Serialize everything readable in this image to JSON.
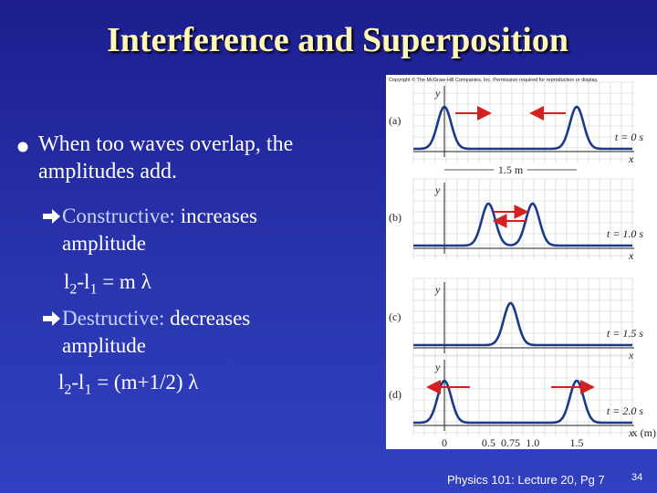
{
  "title": "Interference and Superposition",
  "bullet": "When too waves overlap, the amplitudes add.",
  "sub_items": [
    {
      "term": "Constructive:",
      "text": "increases amplitude",
      "formula": [
        "l",
        "2",
        "-l",
        "1",
        "= m λ"
      ]
    },
    {
      "term": "Destructive:",
      "text": "decreases amplitude",
      "formula": [
        "l",
        "2",
        "-l",
        "1",
        "= (m+1/2) λ"
      ]
    }
  ],
  "figure": {
    "copyright": "Copyright © The McGraw-Hill Companies, Inc. Permission required for reproduction or display.",
    "y_label": "y",
    "x_label": "x",
    "distance": "1.5 m",
    "x_axis_label": "x (m)",
    "panels": [
      {
        "label": "(a)",
        "time": "t = 0 s"
      },
      {
        "label": "(b)",
        "time": "t = 1.0 s"
      },
      {
        "label": "(c)",
        "time": "t = 1.5 s"
      },
      {
        "label": "(d)",
        "time": "t = 2.0 s"
      }
    ],
    "ticks": [
      "0",
      "0.5",
      "0.75",
      "1.0",
      "1.5"
    ]
  },
  "footer": {
    "text": "Physics 101: Lecture 20, Pg 7",
    "page": "34"
  }
}
